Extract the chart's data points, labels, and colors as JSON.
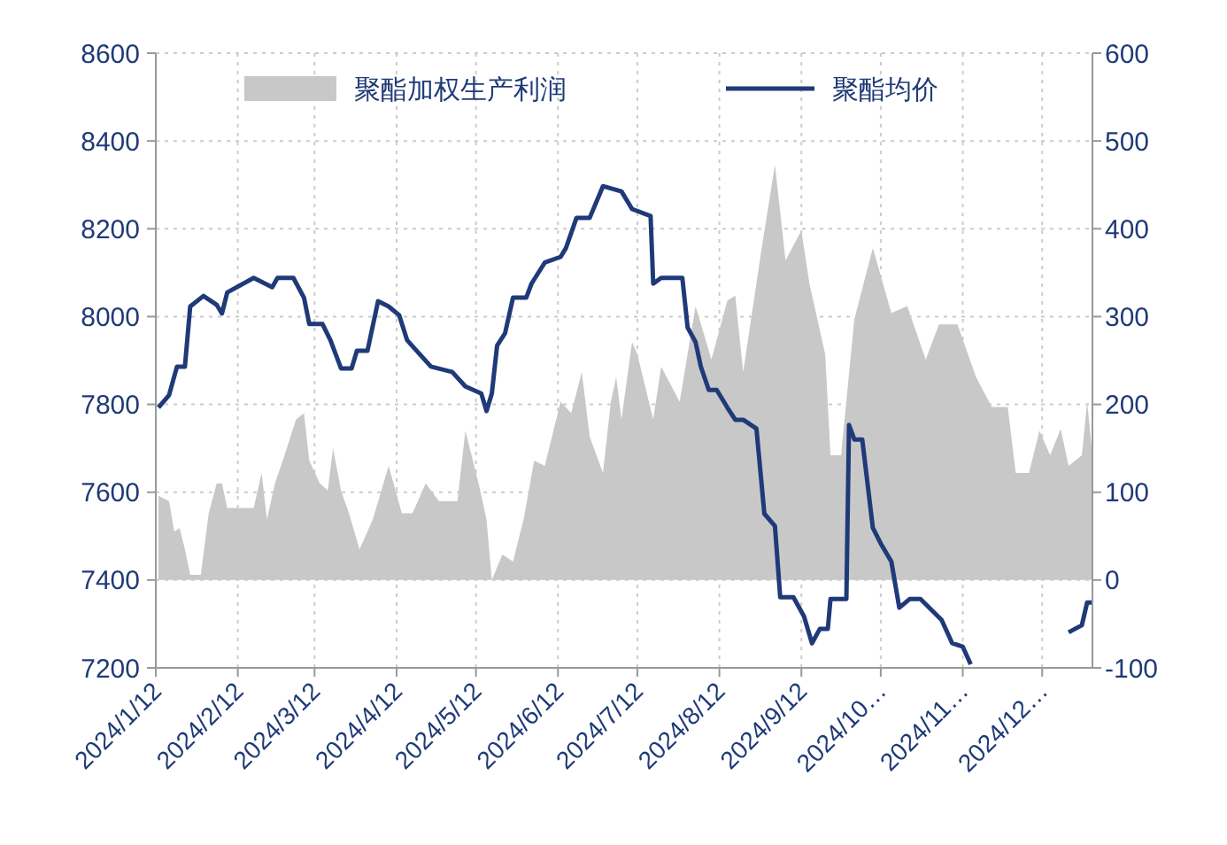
{
  "chart_data": {
    "type": "line",
    "xlim": [
      "2024-01-12",
      "2024-12-31"
    ],
    "xticks": [
      {
        "value": "2024-01-12",
        "label": "2024/1/12"
      },
      {
        "value": "2024-02-12",
        "label": "2024/2/12"
      },
      {
        "value": "2024-03-12",
        "label": "2024/3/12"
      },
      {
        "value": "2024-04-12",
        "label": "2024/4/12"
      },
      {
        "value": "2024-05-12",
        "label": "2024/5/12"
      },
      {
        "value": "2024-06-12",
        "label": "2024/6/12"
      },
      {
        "value": "2024-07-12",
        "label": "2024/7/12"
      },
      {
        "value": "2024-08-12",
        "label": "2024/8/12"
      },
      {
        "value": "2024-09-12",
        "label": "2024/9/12"
      },
      {
        "value": "2024-10-12",
        "label": "2024/10…"
      },
      {
        "value": "2024-11-12",
        "label": "2024/11…"
      },
      {
        "value": "2024-12-12",
        "label": "2024/12…"
      }
    ],
    "ylim": [
      7200,
      8600
    ],
    "yticks": [
      7200,
      7400,
      7600,
      7800,
      8000,
      8200,
      8400,
      8600
    ],
    "y2lim": [
      -100,
      600
    ],
    "y2ticks": [
      -100,
      0,
      100,
      200,
      300,
      400,
      500,
      600
    ],
    "grid": true,
    "legend": "top",
    "series": [
      {
        "name": "聚酯加权生产利润",
        "type": "area",
        "axis": "y2",
        "color": "#c8c8c8",
        "x": [
          "2024-01-13",
          "2024-01-17",
          "2024-01-19",
          "2024-01-21",
          "2024-01-23",
          "2024-01-25",
          "2024-01-29",
          "2024-02-01",
          "2024-02-04",
          "2024-02-06",
          "2024-02-08",
          "2024-02-18",
          "2024-02-21",
          "2024-02-23",
          "2024-02-26",
          "2024-02-29",
          "2024-03-05",
          "2024-03-08",
          "2024-03-10",
          "2024-03-14",
          "2024-03-17",
          "2024-03-19",
          "2024-03-22",
          "2024-03-25",
          "2024-03-29",
          "2024-04-03",
          "2024-04-09",
          "2024-04-14",
          "2024-04-18",
          "2024-04-23",
          "2024-04-28",
          "2024-05-05",
          "2024-05-08",
          "2024-05-13",
          "2024-05-16",
          "2024-05-18",
          "2024-05-22",
          "2024-05-26",
          "2024-05-30",
          "2024-06-03",
          "2024-06-07",
          "2024-06-13",
          "2024-06-17",
          "2024-06-21",
          "2024-06-24",
          "2024-06-29",
          "2024-07-02",
          "2024-07-04",
          "2024-07-06",
          "2024-07-10",
          "2024-07-12",
          "2024-07-18",
          "2024-07-21",
          "2024-07-28",
          "2024-08-03",
          "2024-08-09",
          "2024-08-15",
          "2024-08-18",
          "2024-08-21",
          "2024-08-28",
          "2024-09-02",
          "2024-09-06",
          "2024-09-12",
          "2024-09-15",
          "2024-09-21",
          "2024-09-23",
          "2024-09-27",
          "2024-10-02",
          "2024-10-09",
          "2024-10-16",
          "2024-10-22",
          "2024-10-29",
          "2024-11-03",
          "2024-11-10",
          "2024-11-17",
          "2024-11-23",
          "2024-11-29",
          "2024-12-02",
          "2024-12-07",
          "2024-12-11",
          "2024-12-15",
          "2024-12-19",
          "2024-12-22",
          "2024-12-27",
          "2024-12-29",
          "2024-12-31"
        ],
        "values": [
          96,
          90,
          55,
          59,
          35,
          6,
          6,
          76,
          110,
          110,
          82,
          82,
          122,
          69,
          110,
          136,
          183,
          190,
          136,
          110,
          102,
          150,
          102,
          76,
          35,
          69,
          130,
          76,
          76,
          110,
          90,
          90,
          170,
          110,
          69,
          0,
          29,
          21,
          69,
          136,
          130,
          203,
          190,
          237,
          163,
          122,
          203,
          231,
          183,
          271,
          257,
          183,
          243,
          203,
          312,
          251,
          318,
          324,
          237,
          378,
          473,
          364,
          398,
          338,
          257,
          142,
          142,
          297,
          378,
          304,
          312,
          251,
          291,
          291,
          231,
          197,
          197,
          122,
          122,
          170,
          142,
          172,
          130,
          142,
          203,
          142
        ]
      },
      {
        "name": "聚酯均价",
        "color": "#1f3a78",
        "x": [
          "2024-01-13",
          "2024-01-17",
          "2024-01-20",
          "2024-01-23",
          "2024-01-25",
          "2024-01-30",
          "2024-02-04",
          "2024-02-06",
          "2024-02-08",
          "2024-02-18",
          "2024-02-25",
          "2024-02-27",
          "2024-03-04",
          "2024-03-08",
          "2024-03-10",
          "2024-03-15",
          "2024-03-18",
          "2024-03-22",
          "2024-03-26",
          "2024-03-28",
          "2024-04-01",
          "2024-04-05",
          "2024-04-09",
          "2024-04-13",
          "2024-04-16",
          "2024-04-19",
          "2024-04-25",
          "2024-05-03",
          "2024-05-08",
          "2024-05-14",
          "2024-05-16",
          "2024-05-18",
          "2024-05-20",
          "2024-05-23",
          "2024-05-26",
          "2024-05-31",
          "2024-06-02",
          "2024-06-07",
          "2024-06-13",
          "2024-06-15",
          "2024-06-19",
          "2024-06-24",
          "2024-06-29",
          "2024-07-06",
          "2024-07-10",
          "2024-07-17",
          "2024-07-18",
          "2024-07-21",
          "2024-07-29",
          "2024-07-31",
          "2024-08-03",
          "2024-08-05",
          "2024-08-08",
          "2024-08-11",
          "2024-08-15",
          "2024-08-18",
          "2024-08-21",
          "2024-08-26",
          "2024-08-29",
          "2024-09-02",
          "2024-09-04",
          "2024-09-09",
          "2024-09-13",
          "2024-09-16",
          "2024-09-19",
          "2024-09-22",
          "2024-09-23",
          "2024-09-29",
          "2024-09-30",
          "2024-10-02",
          "2024-10-05",
          "2024-10-09",
          "2024-10-12",
          "2024-10-16",
          "2024-10-19",
          "2024-10-23",
          "2024-10-27",
          "2024-11-04",
          "2024-11-08",
          "2024-11-12",
          "2024-11-15",
          "2024-11-19",
          "2024-12-17",
          "2024-12-22",
          "2024-12-27",
          "2024-12-29",
          "2024-12-31"
        ],
        "values": [
          7793,
          7821,
          7886,
          7886,
          8023,
          8047,
          8027,
          8007,
          8055,
          8088,
          8067,
          8088,
          8088,
          8043,
          7983,
          7983,
          7946,
          7882,
          7882,
          7922,
          7922,
          8035,
          8023,
          8003,
          7946,
          7926,
          7886,
          7874,
          7841,
          7825,
          7785,
          7825,
          7934,
          7962,
          8043,
          8043,
          8075,
          8123,
          8136,
          8156,
          8225,
          8225,
          8297,
          8285,
          8245,
          8229,
          8075,
          8088,
          8088,
          7975,
          7942,
          7886,
          7833,
          7833,
          7793,
          7765,
          7765,
          7745,
          7551,
          7523,
          7361,
          7361,
          7317,
          7256,
          7289,
          7289,
          7357,
          7357,
          7753,
          7720,
          7720,
          7519,
          7483,
          7442,
          7337,
          7357,
          7357,
          7309,
          7256,
          7248,
          7208,
          null,
          null,
          7281,
          7297,
          7349,
          7349
        ]
      }
    ]
  }
}
